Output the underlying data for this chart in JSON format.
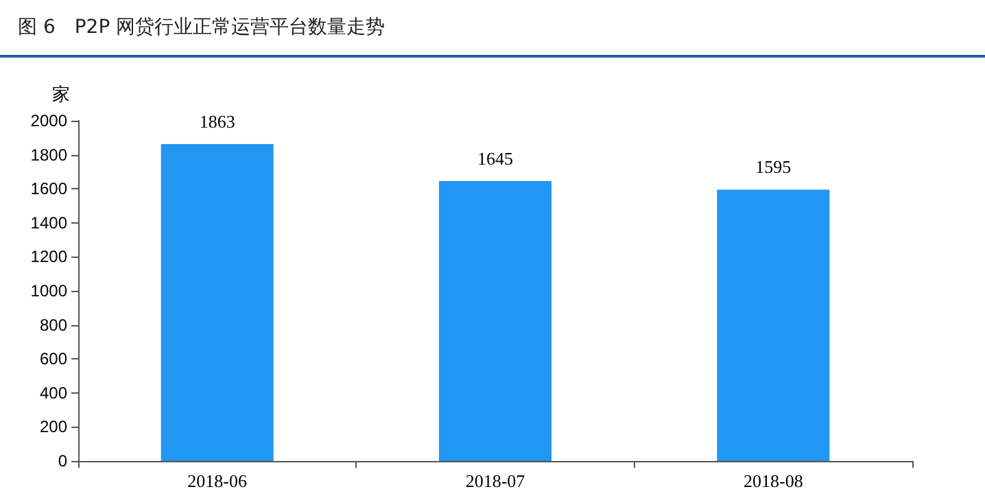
{
  "chart_data": {
    "type": "bar",
    "title": "图 6　P2P 网贷行业正常运营平台数量走势",
    "ylabel": "家",
    "categories": [
      "2018-06",
      "2018-07",
      "2018-08"
    ],
    "values": [
      1863,
      1645,
      1595
    ],
    "color": "#2196f3",
    "ylim": [
      0,
      2000
    ],
    "yticks": [
      0,
      200,
      400,
      600,
      800,
      1000,
      1200,
      1400,
      1600,
      1800,
      2000
    ],
    "grid": false,
    "data_labels": true
  }
}
